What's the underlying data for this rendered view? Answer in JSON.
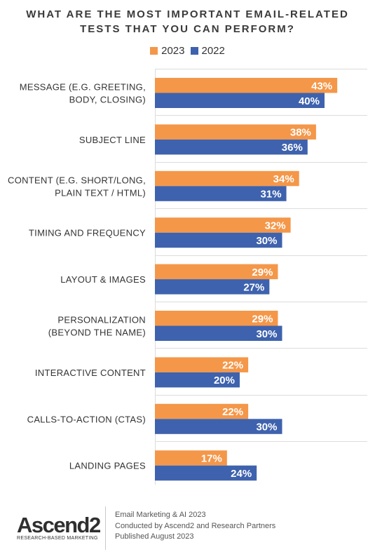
{
  "colors": {
    "series_2023": "#f49749",
    "series_2022": "#3e62ad",
    "grid": "#dcdcdc",
    "category_text": "#333333",
    "value_text": "#ffffff"
  },
  "footer": {
    "logo_main": "Ascend2",
    "logo_sub": "RESEARCH-BASED MARKETING",
    "lines": [
      "Email Marketing & AI 2023",
      "Conducted by Ascend2 and Research Partners",
      "Published August 2023"
    ]
  },
  "chart_data": {
    "type": "bar",
    "orientation": "horizontal",
    "title_lines": [
      "WHAT ARE THE MOST IMPORTANT EMAIL-RELATED",
      "TESTS THAT YOU CAN PERFORM?"
    ],
    "legend_position": "top-center",
    "grid": true,
    "xlim": [
      0,
      50
    ],
    "categories": [
      [
        "MESSAGE (E.G. GREETING,",
        "BODY, CLOSING)"
      ],
      [
        "SUBJECT LINE"
      ],
      [
        "CONTENT (E.G. SHORT/LONG,",
        "PLAIN TEXT / HTML)"
      ],
      [
        "TIMING AND FREQUENCY"
      ],
      [
        "LAYOUT & IMAGES"
      ],
      [
        "PERSONALIZATION",
        "(BEYOND THE NAME)"
      ],
      [
        "INTERACTIVE CONTENT"
      ],
      [
        "CALLS-TO-ACTION (CTAS)"
      ],
      [
        "LANDING PAGES"
      ]
    ],
    "series": [
      {
        "name": "2023",
        "values": [
          43,
          38,
          34,
          32,
          29,
          29,
          22,
          22,
          17
        ],
        "labels": [
          "43%",
          "38%",
          "34%",
          "32%",
          "29%",
          "29%",
          "22%",
          "22%",
          "17%"
        ]
      },
      {
        "name": "2022",
        "values": [
          40,
          36,
          31,
          30,
          27,
          30,
          20,
          30,
          24
        ],
        "labels": [
          "40%",
          "36%",
          "31%",
          "30%",
          "27%",
          "30%",
          "20%",
          "30%",
          "24%"
        ]
      }
    ]
  }
}
